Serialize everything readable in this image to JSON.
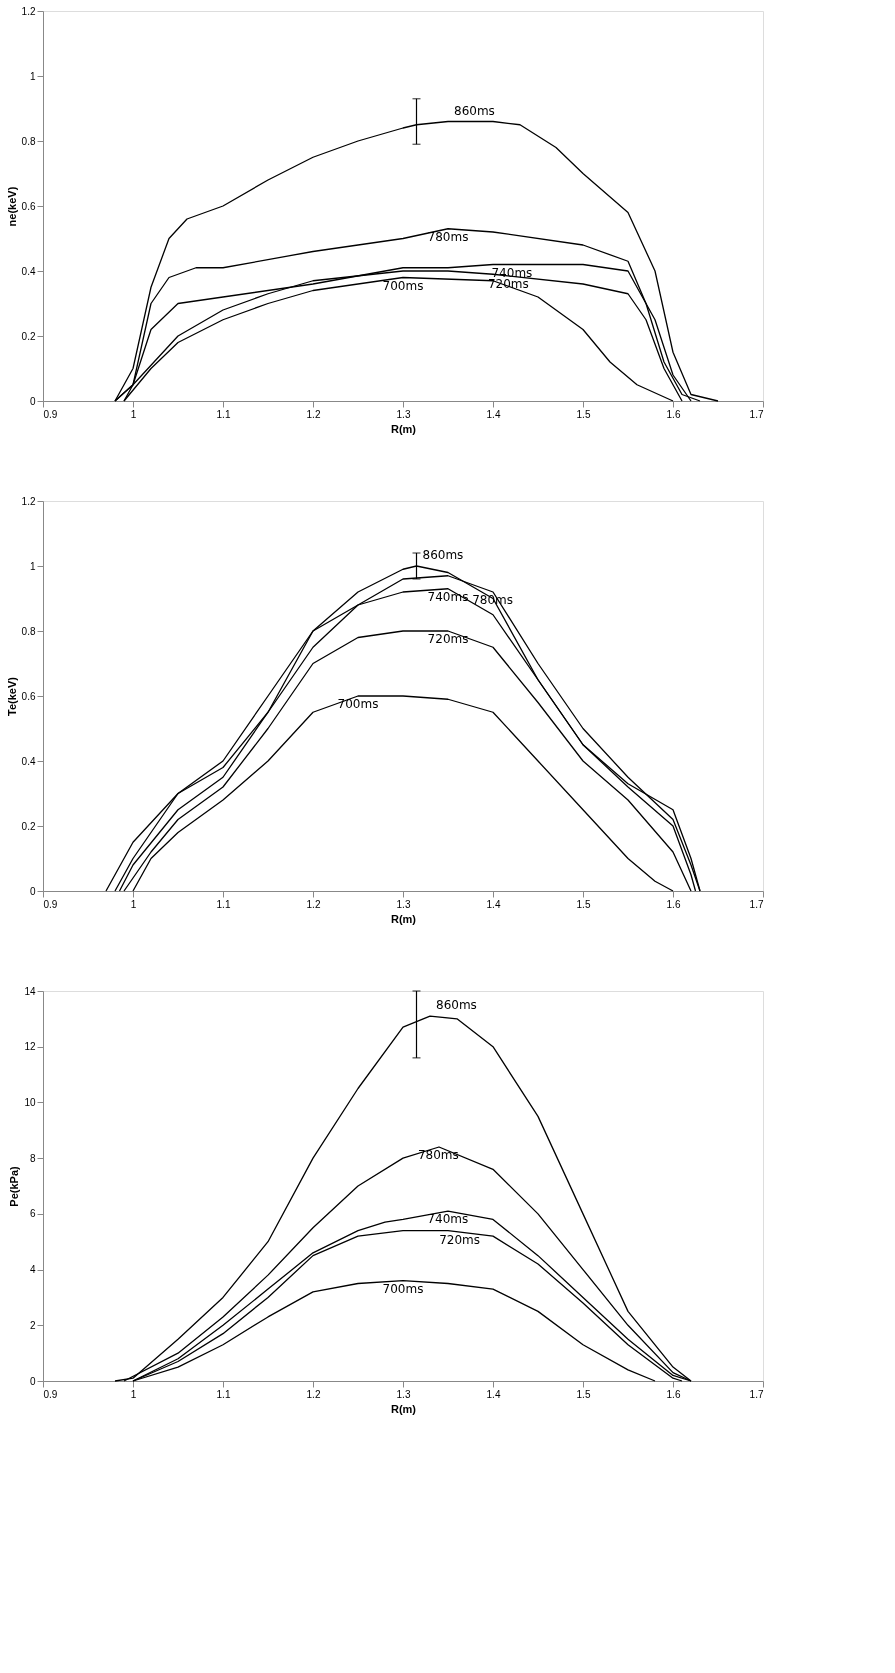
{
  "chart_data": [
    {
      "type": "line",
      "xlabel": "R(m)",
      "ylabel": "ne(keV)",
      "xlim": [
        0.9,
        1.7
      ],
      "xticks": [
        0.9,
        1,
        1.1,
        1.2,
        1.3,
        1.4,
        1.5,
        1.6,
        1.7
      ],
      "ylim": [
        0,
        1.2
      ],
      "yticks": [
        0,
        0.2,
        0.4,
        0.6,
        0.8,
        1,
        1.2
      ],
      "grid": false,
      "legend": false,
      "marker": "none",
      "line_style": "solid",
      "series": [
        {
          "name": "860ms",
          "color": "#000000",
          "x": [
            0.98,
            1.0,
            1.02,
            1.04,
            1.06,
            1.1,
            1.15,
            1.2,
            1.25,
            1.3,
            1.315,
            1.35,
            1.4,
            1.43,
            1.47,
            1.5,
            1.55,
            1.58,
            1.6,
            1.62,
            1.65
          ],
          "values": [
            0,
            0.1,
            0.35,
            0.5,
            0.56,
            0.6,
            0.68,
            0.75,
            0.8,
            0.84,
            0.85,
            0.86,
            0.86,
            0.85,
            0.78,
            0.7,
            0.58,
            0.4,
            0.15,
            0.02,
            0
          ],
          "errors": [
            null,
            null,
            null,
            null,
            null,
            null,
            null,
            null,
            null,
            null,
            [
              0.79,
              0.93
            ],
            null,
            null,
            null,
            null,
            null,
            null,
            null,
            null,
            null,
            null
          ]
        },
        {
          "name": "780ms",
          "color": "#000000",
          "x": [
            0.99,
            1.0,
            1.02,
            1.04,
            1.07,
            1.1,
            1.2,
            1.3,
            1.35,
            1.4,
            1.5,
            1.55,
            1.57,
            1.59,
            1.61,
            1.63
          ],
          "values": [
            0,
            0.05,
            0.3,
            0.38,
            0.41,
            0.41,
            0.46,
            0.5,
            0.53,
            0.52,
            0.48,
            0.43,
            0.3,
            0.12,
            0.02,
            0
          ]
        },
        {
          "name": "740ms",
          "color": "#000000",
          "x": [
            0.98,
            1.0,
            1.02,
            1.05,
            1.1,
            1.2,
            1.3,
            1.35,
            1.4,
            1.5,
            1.55,
            1.58,
            1.6,
            1.62
          ],
          "values": [
            0,
            0.05,
            0.22,
            0.3,
            0.32,
            0.36,
            0.41,
            0.41,
            0.42,
            0.42,
            0.4,
            0.25,
            0.08,
            0
          ]
        },
        {
          "name": "720ms",
          "color": "#000000",
          "x": [
            0.98,
            1.0,
            1.05,
            1.1,
            1.15,
            1.2,
            1.3,
            1.35,
            1.4,
            1.5,
            1.55,
            1.57,
            1.59,
            1.61
          ],
          "values": [
            0,
            0.05,
            0.2,
            0.28,
            0.33,
            0.37,
            0.4,
            0.4,
            0.39,
            0.36,
            0.33,
            0.25,
            0.1,
            0
          ]
        },
        {
          "name": "700ms",
          "color": "#000000",
          "x": [
            0.99,
            1.02,
            1.05,
            1.1,
            1.15,
            1.2,
            1.3,
            1.4,
            1.45,
            1.5,
            1.53,
            1.56,
            1.6
          ],
          "values": [
            0,
            0.1,
            0.18,
            0.25,
            0.3,
            0.34,
            0.38,
            0.37,
            0.32,
            0.22,
            0.12,
            0.05,
            0
          ]
        }
      ]
    },
    {
      "type": "line",
      "xlabel": "R(m)",
      "ylabel": "Te(keV)",
      "xlim": [
        0.9,
        1.7
      ],
      "xticks": [
        0.9,
        1,
        1.1,
        1.2,
        1.3,
        1.4,
        1.5,
        1.6,
        1.7
      ],
      "ylim": [
        0,
        1.2
      ],
      "yticks": [
        0,
        0.2,
        0.4,
        0.6,
        0.8,
        1,
        1.2
      ],
      "grid": false,
      "legend": false,
      "marker": "none",
      "line_style": "solid",
      "series": [
        {
          "name": "860ms",
          "color": "#000000",
          "x": [
            0.97,
            1.0,
            1.05,
            1.1,
            1.15,
            1.2,
            1.25,
            1.3,
            1.315,
            1.35,
            1.4,
            1.45,
            1.5,
            1.55,
            1.6,
            1.62,
            1.63
          ],
          "values": [
            0,
            0.15,
            0.3,
            0.4,
            0.6,
            0.8,
            0.92,
            0.99,
            1.0,
            0.98,
            0.9,
            0.65,
            0.45,
            0.33,
            0.25,
            0.1,
            0
          ],
          "errors": [
            null,
            null,
            null,
            null,
            null,
            null,
            null,
            null,
            [
              0.96,
              1.04
            ],
            null,
            null,
            null,
            null,
            null,
            null,
            null,
            null
          ]
        },
        {
          "name": "780ms",
          "color": "#000000",
          "x": [
            0.98,
            1.0,
            1.05,
            1.1,
            1.15,
            1.2,
            1.25,
            1.3,
            1.35,
            1.4,
            1.45,
            1.5,
            1.55,
            1.6,
            1.62,
            1.63
          ],
          "values": [
            0,
            0.1,
            0.3,
            0.38,
            0.55,
            0.75,
            0.88,
            0.96,
            0.97,
            0.92,
            0.7,
            0.5,
            0.35,
            0.22,
            0.08,
            0
          ]
        },
        {
          "name": "740ms",
          "color": "#000000",
          "x": [
            0.985,
            1.0,
            1.05,
            1.1,
            1.15,
            1.2,
            1.25,
            1.3,
            1.35,
            1.4,
            1.45,
            1.5,
            1.55,
            1.6,
            1.62,
            1.625
          ],
          "values": [
            0,
            0.08,
            0.25,
            0.35,
            0.55,
            0.8,
            0.88,
            0.92,
            0.93,
            0.85,
            0.65,
            0.45,
            0.32,
            0.2,
            0.05,
            0
          ]
        },
        {
          "name": "720ms",
          "color": "#000000",
          "x": [
            0.99,
            1.02,
            1.05,
            1.1,
            1.15,
            1.2,
            1.25,
            1.3,
            1.35,
            1.4,
            1.45,
            1.5,
            1.55,
            1.6,
            1.62
          ],
          "values": [
            0,
            0.12,
            0.22,
            0.32,
            0.5,
            0.7,
            0.78,
            0.8,
            0.8,
            0.75,
            0.58,
            0.4,
            0.28,
            0.12,
            0
          ]
        },
        {
          "name": "700ms",
          "color": "#000000",
          "x": [
            1.0,
            1.02,
            1.05,
            1.1,
            1.15,
            1.2,
            1.25,
            1.3,
            1.35,
            1.4,
            1.45,
            1.5,
            1.55,
            1.58,
            1.6
          ],
          "values": [
            0,
            0.1,
            0.18,
            0.28,
            0.4,
            0.55,
            0.6,
            0.6,
            0.59,
            0.55,
            0.4,
            0.25,
            0.1,
            0.03,
            0
          ]
        }
      ]
    },
    {
      "type": "line",
      "xlabel": "R(m)",
      "ylabel": "Pe(kPa)",
      "xlim": [
        0.9,
        1.7
      ],
      "xticks": [
        0.9,
        1,
        1.1,
        1.2,
        1.3,
        1.4,
        1.5,
        1.6,
        1.7
      ],
      "ylim": [
        0,
        14
      ],
      "yticks": [
        0,
        2,
        4,
        6,
        8,
        10,
        12,
        14
      ],
      "grid": false,
      "legend": false,
      "marker": "none",
      "line_style": "solid",
      "series": [
        {
          "name": "860ms",
          "color": "#000000",
          "x": [
            0.98,
            1.0,
            1.05,
            1.1,
            1.15,
            1.2,
            1.25,
            1.3,
            1.315,
            1.33,
            1.36,
            1.4,
            1.45,
            1.5,
            1.55,
            1.6,
            1.62
          ],
          "values": [
            0,
            0.1,
            1.5,
            3,
            5,
            8,
            10.5,
            12.7,
            12.9,
            13.1,
            13,
            12,
            9.5,
            6,
            2.5,
            0.5,
            0
          ],
          "errors": [
            null,
            null,
            null,
            null,
            null,
            null,
            null,
            null,
            [
              11.6,
              14
            ],
            null,
            null,
            null,
            null,
            null,
            null,
            null,
            null
          ]
        },
        {
          "name": "780ms",
          "color": "#000000",
          "x": [
            0.99,
            1.05,
            1.1,
            1.15,
            1.2,
            1.25,
            1.3,
            1.34,
            1.4,
            1.45,
            1.5,
            1.55,
            1.6,
            1.62
          ],
          "values": [
            0,
            1.0,
            2.3,
            3.8,
            5.5,
            7,
            8,
            8.4,
            7.6,
            6,
            4,
            2,
            0.3,
            0
          ]
        },
        {
          "name": "740ms",
          "color": "#000000",
          "x": [
            1.0,
            1.05,
            1.1,
            1.15,
            1.2,
            1.25,
            1.28,
            1.3,
            1.35,
            1.4,
            1.45,
            1.5,
            1.55,
            1.6,
            1.62
          ],
          "values": [
            0,
            0.8,
            2,
            3.3,
            4.6,
            5.4,
            5.7,
            5.8,
            6.1,
            5.8,
            4.5,
            3,
            1.5,
            0.2,
            0
          ]
        },
        {
          "name": "720ms",
          "color": "#000000",
          "x": [
            1.0,
            1.05,
            1.1,
            1.15,
            1.2,
            1.25,
            1.3,
            1.35,
            1.4,
            1.45,
            1.5,
            1.55,
            1.6,
            1.61
          ],
          "values": [
            0,
            0.7,
            1.7,
            3,
            4.5,
            5.2,
            5.4,
            5.4,
            5.2,
            4.2,
            2.8,
            1.3,
            0.1,
            0
          ]
        },
        {
          "name": "700ms",
          "color": "#000000",
          "x": [
            1.0,
            1.05,
            1.1,
            1.15,
            1.2,
            1.25,
            1.3,
            1.35,
            1.4,
            1.45,
            1.5,
            1.55,
            1.58
          ],
          "values": [
            0,
            0.5,
            1.3,
            2.3,
            3.2,
            3.5,
            3.6,
            3.5,
            3.3,
            2.5,
            1.3,
            0.4,
            0
          ]
        }
      ]
    }
  ]
}
